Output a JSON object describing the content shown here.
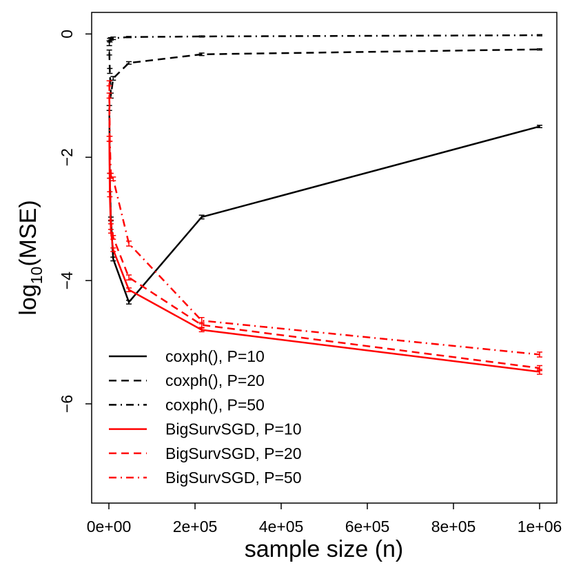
{
  "chart_data": {
    "type": "line",
    "x_label": "sample size (n)",
    "y_label": {
      "prefix": "log",
      "subscript": "10",
      "suffix": "(MSE)"
    },
    "x": [
      1000,
      2154,
      4642,
      10000,
      46416,
      215443,
      1000000
    ],
    "xlim": [
      -40000,
      1040000
    ],
    "xticks": [
      {
        "value": 0,
        "label": "0e+00"
      },
      {
        "value": 200000,
        "label": "2e+05"
      },
      {
        "value": 400000,
        "label": "4e+05"
      },
      {
        "value": 600000,
        "label": "6e+05"
      },
      {
        "value": 800000,
        "label": "8e+05"
      },
      {
        "value": 1000000,
        "label": "1e+06"
      }
    ],
    "ylim": [
      -7.61,
      0.35
    ],
    "yticks": [
      {
        "value": 0,
        "label": "0"
      },
      {
        "value": -2,
        "label": "−2"
      },
      {
        "value": -4,
        "label": "−4"
      },
      {
        "value": -6,
        "label": "−6"
      }
    ],
    "series": [
      {
        "name": "coxph(), P=10",
        "color": "#000000",
        "linestyle": "solid",
        "values": [
          -1.2,
          -2.3,
          -3.0,
          -3.65,
          -4.35,
          -2.97,
          -1.5
        ],
        "errors": [
          0.04,
          0.04,
          0.03,
          0.03,
          0.03,
          0.03,
          0.02
        ]
      },
      {
        "name": "coxph(), P=20",
        "color": "#000000",
        "linestyle": "dashed",
        "values": [
          -0.3,
          -0.6,
          -1.0,
          -0.72,
          -0.47,
          -0.33,
          -0.25
        ],
        "errors": [
          0.04,
          0.04,
          0.04,
          0.03,
          0.02,
          0.02,
          0.01
        ]
      },
      {
        "name": "coxph(), P=50",
        "color": "#000000",
        "linestyle": "dotdash",
        "values": [
          -0.15,
          -0.1,
          -0.08,
          -0.07,
          -0.05,
          -0.04,
          -0.02
        ],
        "errors": [
          0.04,
          0.03,
          0.02,
          0.02,
          0.01,
          0.01,
          0.01
        ]
      },
      {
        "name": "BigSurvSGD, P=10",
        "color": "#ff0000",
        "linestyle": "solid",
        "values": [
          -1.7,
          -2.6,
          -3.2,
          -3.5,
          -4.15,
          -4.8,
          -5.48
        ],
        "errors": [
          0.04,
          0.04,
          0.03,
          0.03,
          0.03,
          0.03,
          0.04
        ]
      },
      {
        "name": "BigSurvSGD, P=20",
        "color": "#ff0000",
        "linestyle": "dashed",
        "values": [
          -1.0,
          -2.3,
          -3.05,
          -3.3,
          -3.95,
          -4.72,
          -5.42
        ],
        "errors": [
          0.04,
          0.04,
          0.03,
          0.03,
          0.04,
          0.04,
          0.04
        ]
      },
      {
        "name": "BigSurvSGD, P=50",
        "color": "#ff0000",
        "linestyle": "dotdash",
        "values": [
          -0.8,
          -1.7,
          -2.3,
          -2.35,
          -3.4,
          -4.65,
          -5.2
        ],
        "errors": [
          0.04,
          0.04,
          0.04,
          0.03,
          0.04,
          0.05,
          0.04
        ]
      }
    ]
  }
}
